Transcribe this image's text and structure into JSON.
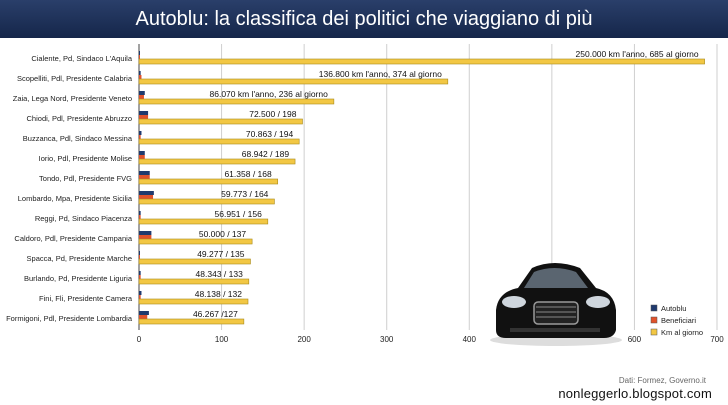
{
  "header": {
    "title": "Autoblu: la classifica dei politici che viaggiano di più"
  },
  "footer": {
    "source": "Dati: Formez, Governo.it",
    "site": "nonleggerlo.blogspot.com"
  },
  "colors": {
    "autoblu": "#1f3a6e",
    "beneficiari": "#e0522b",
    "km": "#f2c744",
    "title_bg": "#1b2d52"
  },
  "chart_data": {
    "type": "bar",
    "orientation": "horizontal",
    "xlim": [
      0,
      700
    ],
    "xticks": [
      0,
      100,
      200,
      300,
      400,
      500,
      600,
      700
    ],
    "grid": true,
    "legend_position": "bottom-right",
    "series_names": [
      "Autoblu",
      "Beneficiari",
      "Km al giorno"
    ],
    "categories": [
      {
        "label": "Cialente, Pd, Sindaco L'Aquila",
        "autoblu": 1,
        "beneficiari": 1,
        "km": 685,
        "annotation": "250.000 km l'anno, 685 al giorno"
      },
      {
        "label": "Scopelliti, Pdl, Presidente Calabria",
        "autoblu": 2,
        "beneficiari": 3,
        "km": 374,
        "annotation": "136.800 km l'anno, 374 al giorno"
      },
      {
        "label": "Zaia, Lega Nord, Presidente Veneto",
        "autoblu": 7,
        "beneficiari": 6,
        "km": 236,
        "annotation": "86.070 km l'anno, 236 al giorno"
      },
      {
        "label": "Chiodi, Pdl, Presidente Abruzzo",
        "autoblu": 11,
        "beneficiari": 11,
        "km": 198,
        "annotation": "72.500 / 198"
      },
      {
        "label": "Buzzanca, Pdl, Sindaco Messina",
        "autoblu": 3,
        "beneficiari": 2,
        "km": 194,
        "annotation": "70.863 / 194"
      },
      {
        "label": "Iorio, Pdl, Presidente Molise",
        "autoblu": 7,
        "beneficiari": 7,
        "km": 189,
        "annotation": "68.942 / 189"
      },
      {
        "label": "Tondo, Pdl, Presidente FVG",
        "autoblu": 13,
        "beneficiari": 13,
        "km": 168,
        "annotation": "61.358 / 168"
      },
      {
        "label": "Lombardo, Mpa, Presidente Sicilia",
        "autoblu": 18,
        "beneficiari": 17,
        "km": 164,
        "annotation": "59.773 / 164"
      },
      {
        "label": "Reggi, Pd, Sindaco Piacenza",
        "autoblu": 2,
        "beneficiari": 2,
        "km": 156,
        "annotation": "56.951 / 156"
      },
      {
        "label": "Caldoro, Pdl, Presidente Campania",
        "autoblu": 15,
        "beneficiari": 15,
        "km": 137,
        "annotation": "50.000 / 137"
      },
      {
        "label": "Spacca, Pd, Presidente Marche",
        "autoblu": 1,
        "beneficiari": 1,
        "km": 135,
        "annotation": "49.277 / 135"
      },
      {
        "label": "Burlando, Pd, Presidente Liguria",
        "autoblu": 2,
        "beneficiari": 2,
        "km": 133,
        "annotation": "48.343 / 133"
      },
      {
        "label": "Fini, Fli, Presidente Camera",
        "autoblu": 3,
        "beneficiari": 2,
        "km": 132,
        "annotation": "48.138 / 132"
      },
      {
        "label": "Formigoni, Pdl, Presidente Lombardia",
        "autoblu": 12,
        "beneficiari": 10,
        "km": 127,
        "annotation": "46.267 /127"
      }
    ]
  }
}
